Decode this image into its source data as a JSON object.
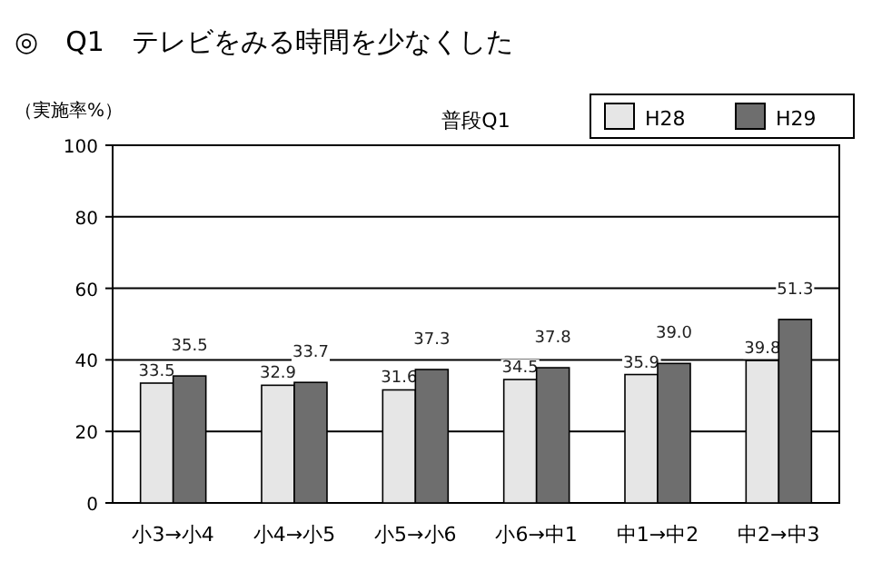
{
  "chart_data": {
    "type": "bar",
    "title": "◎　Q1　テレビをみる時間を少なくした",
    "subtitle": "普段Q1",
    "ylabel": "（実施率%）",
    "categories": [
      "小3→小4",
      "小4→小5",
      "小5→小6",
      "小6→中1",
      "中1→中2",
      "中2→中3"
    ],
    "series": [
      {
        "name": "H28",
        "color": "#e6e6e6",
        "values": [
          33.5,
          32.9,
          31.6,
          34.5,
          35.9,
          39.8
        ],
        "value_labels": [
          "33.5",
          "32.9",
          "31.6",
          "34.5",
          "35.9",
          "39.8"
        ]
      },
      {
        "name": "H29",
        "color": "#6e6e6e",
        "values": [
          35.5,
          33.7,
          37.3,
          37.8,
          39.0,
          51.3
        ],
        "value_labels": [
          "35.5",
          "33.7",
          "37.3",
          "37.8",
          "39.0",
          "51.3"
        ]
      }
    ],
    "ylim": [
      0,
      100
    ],
    "yticks": [
      0,
      20,
      40,
      60,
      80,
      100
    ],
    "grid": "y",
    "legend": "top right"
  }
}
